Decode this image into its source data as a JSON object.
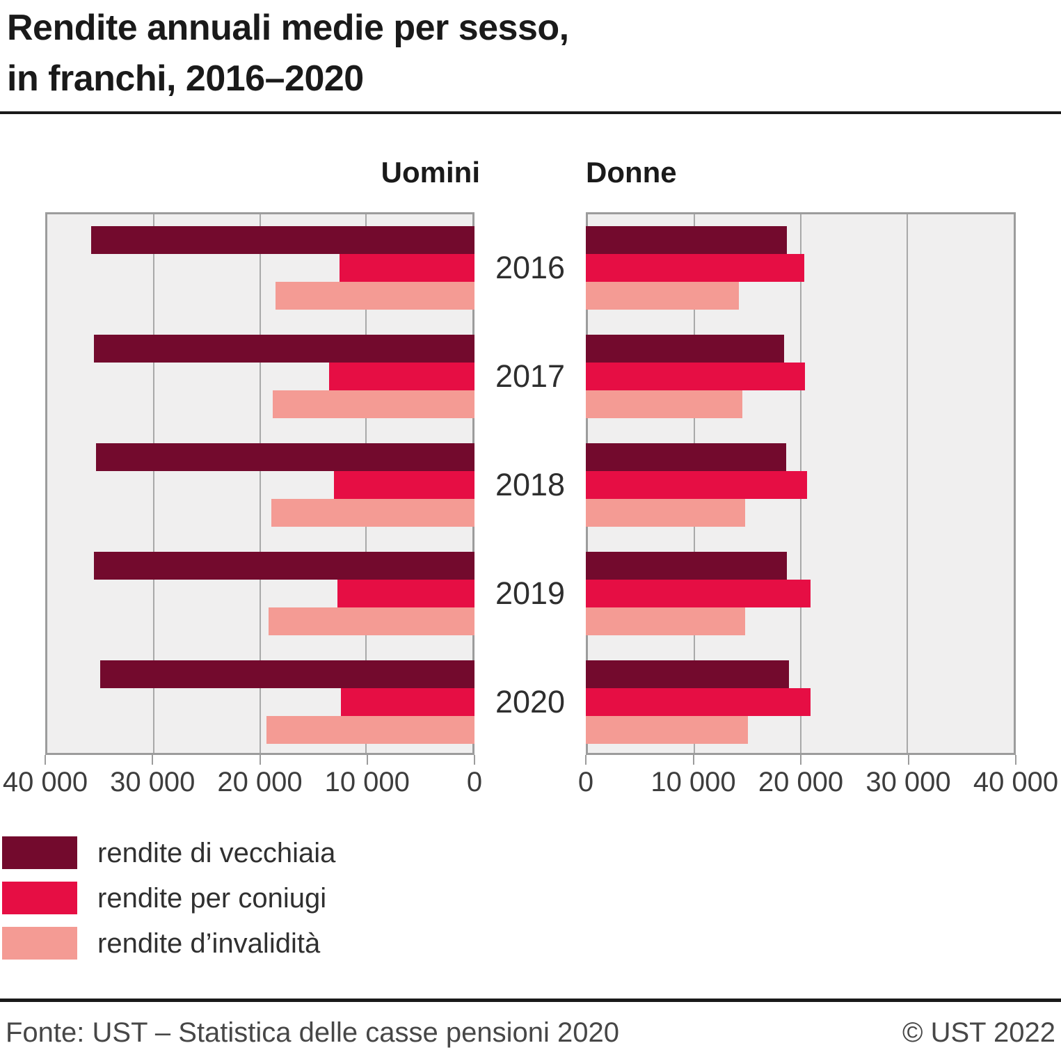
{
  "title": {
    "line1": "Rendite annuali medie per sesso,",
    "line2": "in franchi, 2016–2020"
  },
  "panel_headers": {
    "left": "Uomini",
    "right": "Donne"
  },
  "axis": {
    "left_tick_labels": [
      "40 000",
      "30 000",
      "20 000",
      "10 000",
      "0"
    ],
    "right_tick_labels": [
      "0",
      "10 000",
      "20 000",
      "30 000",
      "40 000"
    ],
    "max_value": 40000,
    "grid_step": 10000
  },
  "legend": [
    {
      "label": "rendite di vecchiaia",
      "color": "#730A2D"
    },
    {
      "label": "rendite per coniugi",
      "color": "#E60E44"
    },
    {
      "label": "rendite d’invalidità",
      "color": "#F49B94"
    }
  ],
  "chart_data": {
    "type": "bar",
    "orientation": "horizontal",
    "title": "Rendite annuali medie per sesso, in franchi, 2016–2020",
    "unit": "franchi",
    "categories": [
      "2016",
      "2017",
      "2018",
      "2019",
      "2020"
    ],
    "xlim": [
      0,
      40000
    ],
    "grid": true,
    "legend_position": "bottom-left",
    "panels": [
      {
        "name": "Uomini",
        "bars_grow": "right_to_left",
        "series": [
          {
            "name": "rendite di vecchiaia",
            "color": "#730A2D",
            "values": [
              35900,
              35600,
              35400,
              35600,
              35000
            ]
          },
          {
            "name": "rendite per coniugi",
            "color": "#E60E44",
            "values": [
              12500,
              13500,
              13000,
              12700,
              12400
            ]
          },
          {
            "name": "rendite d’invalidità",
            "color": "#F49B94",
            "values": [
              18500,
              18800,
              18900,
              19200,
              19400
            ]
          }
        ]
      },
      {
        "name": "Donne",
        "bars_grow": "left_to_right",
        "series": [
          {
            "name": "rendite di vecchiaia",
            "color": "#730A2D",
            "values": [
              18700,
              18400,
              18600,
              18700,
              18900
            ]
          },
          {
            "name": "rendite per coniugi",
            "color": "#E60E44",
            "values": [
              20300,
              20400,
              20600,
              20900,
              20900
            ]
          },
          {
            "name": "rendite d’invalidità",
            "color": "#F49B94",
            "values": [
              14200,
              14500,
              14800,
              14800,
              15000
            ]
          }
        ]
      }
    ]
  },
  "footer": {
    "source": "Fonte: UST – Statistica delle casse pensioni 2020",
    "copyright": "© UST 2022"
  }
}
